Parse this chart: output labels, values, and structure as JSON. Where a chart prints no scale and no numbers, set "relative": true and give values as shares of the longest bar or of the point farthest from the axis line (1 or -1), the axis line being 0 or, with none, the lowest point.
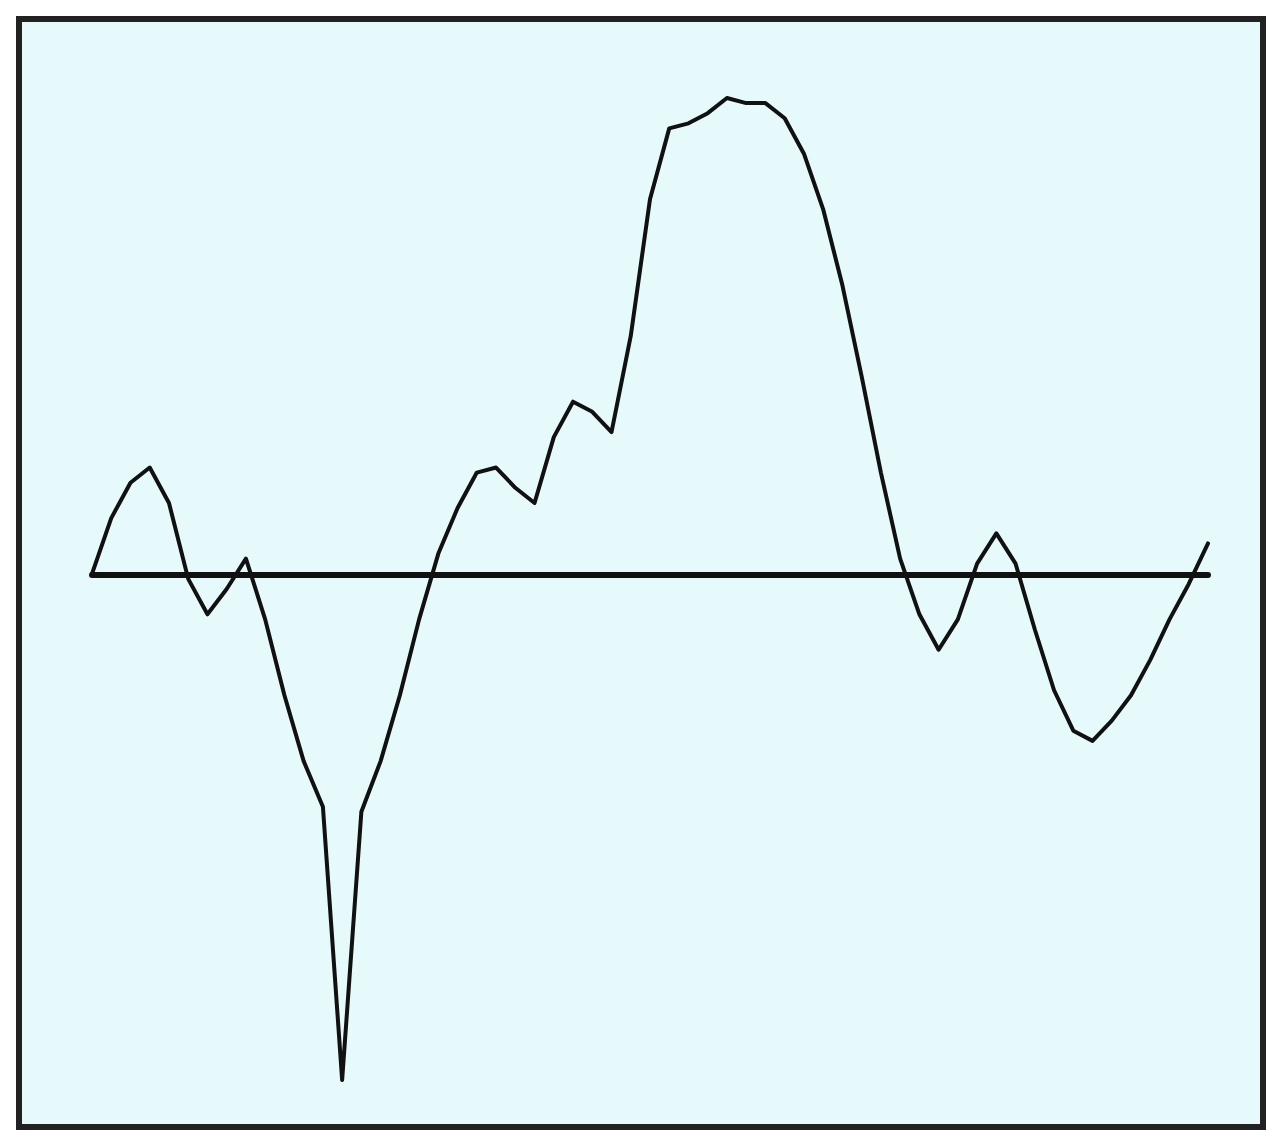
{
  "chart_data": {
    "type": "line",
    "relative": true,
    "color": "#111111",
    "marker": "none",
    "line_style": "solid",
    "grid": false,
    "categories": [
      null,
      null,
      null,
      null,
      null,
      null,
      null,
      null,
      null,
      null,
      null,
      null,
      null,
      null,
      null,
      null,
      null,
      null,
      null,
      null,
      null,
      null,
      null,
      null,
      null,
      null,
      null,
      null,
      null,
      null,
      null,
      null,
      null,
      null,
      null,
      null,
      null,
      null,
      null,
      null,
      null,
      null,
      null,
      null,
      null,
      null,
      null,
      null,
      null,
      null,
      null,
      null,
      null,
      null,
      null,
      null,
      null,
      null,
      null
    ],
    "values": [
      0,
      0.11,
      0.18,
      0.21,
      0.14,
      -0.01,
      -0.08,
      -0.03,
      0.03,
      -0.09,
      -0.24,
      -0.37,
      -0.46,
      -1,
      -0.47,
      -0.37,
      -0.24,
      -0.09,
      0.04,
      0.13,
      0.2,
      0.21,
      0.17,
      0.14,
      0.27,
      0.34,
      0.32,
      0.28,
      0.47,
      0.74,
      0.88,
      0.89,
      0.91,
      0.94,
      0.93,
      0.93,
      0.9,
      0.83,
      0.72,
      0.57,
      0.39,
      0.2,
      0.03,
      -0.08,
      -0.15,
      -0.09,
      0.02,
      0.08,
      0.02,
      -0.11,
      -0.23,
      -0.31,
      -0.33,
      -0.29,
      -0.24,
      -0.17,
      -0.09,
      -0.02,
      0.06
    ]
  }
}
